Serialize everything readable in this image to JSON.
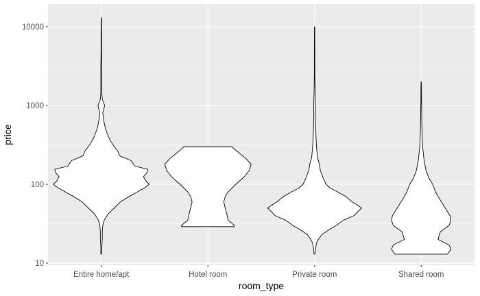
{
  "chart_data": {
    "type": "violin",
    "xlabel": "room_type",
    "ylabel": "price",
    "y_scale": "log10",
    "ylim": [
      10,
      13000
    ],
    "y_ticks": [
      10,
      100,
      1000,
      10000
    ],
    "y_tick_labels": [
      "10",
      "100",
      "1000",
      "10000"
    ],
    "categories": [
      "Entire home/apt",
      "Hotel room",
      "Private room",
      "Shared room"
    ],
    "grid": true,
    "background": "#ebebeb",
    "gridline_color": "#ffffff",
    "violin_fill": "#ffffff",
    "violin_stroke": "#000000",
    "violins": [
      {
        "category": "Entire home/apt",
        "min": 13,
        "max": 13000,
        "density": [
          [
            13,
            0.01
          ],
          [
            16,
            0.01
          ],
          [
            20,
            0.02
          ],
          [
            25,
            0.02
          ],
          [
            30,
            0.03
          ],
          [
            35,
            0.06
          ],
          [
            42,
            0.14
          ],
          [
            50,
            0.27
          ],
          [
            60,
            0.4
          ],
          [
            70,
            0.58
          ],
          [
            80,
            0.75
          ],
          [
            90,
            0.9
          ],
          [
            100,
            1.0
          ],
          [
            110,
            0.93
          ],
          [
            125,
            0.88
          ],
          [
            140,
            0.95
          ],
          [
            155,
            0.97
          ],
          [
            170,
            0.7
          ],
          [
            200,
            0.62
          ],
          [
            230,
            0.38
          ],
          [
            260,
            0.35
          ],
          [
            300,
            0.27
          ],
          [
            350,
            0.2
          ],
          [
            400,
            0.15
          ],
          [
            500,
            0.09
          ],
          [
            600,
            0.06
          ],
          [
            800,
            0.03
          ],
          [
            1000,
            0.07
          ],
          [
            1200,
            0.02
          ],
          [
            1500,
            0.01
          ],
          [
            2000,
            0.01
          ],
          [
            3000,
            0.01
          ],
          [
            5000,
            0.005
          ],
          [
            8000,
            0.005
          ],
          [
            13000,
            0.003
          ]
        ]
      },
      {
        "category": "Hotel room",
        "min": 29,
        "max": 300,
        "density": [
          [
            29,
            0.55
          ],
          [
            30,
            0.55
          ],
          [
            32,
            0.5
          ],
          [
            35,
            0.42
          ],
          [
            40,
            0.4
          ],
          [
            45,
            0.38
          ],
          [
            50,
            0.36
          ],
          [
            60,
            0.33
          ],
          [
            70,
            0.36
          ],
          [
            80,
            0.42
          ],
          [
            100,
            0.58
          ],
          [
            125,
            0.76
          ],
          [
            150,
            0.86
          ],
          [
            180,
            0.9
          ],
          [
            210,
            0.8
          ],
          [
            250,
            0.65
          ],
          [
            280,
            0.55
          ],
          [
            300,
            0.5
          ]
        ]
      },
      {
        "category": "Private room",
        "min": 13,
        "max": 10000,
        "density": [
          [
            13,
            0.01
          ],
          [
            15,
            0.02
          ],
          [
            18,
            0.04
          ],
          [
            20,
            0.08
          ],
          [
            23,
            0.15
          ],
          [
            27,
            0.32
          ],
          [
            30,
            0.45
          ],
          [
            35,
            0.6
          ],
          [
            40,
            0.82
          ],
          [
            45,
            0.9
          ],
          [
            50,
            0.98
          ],
          [
            55,
            0.88
          ],
          [
            60,
            0.78
          ],
          [
            70,
            0.65
          ],
          [
            80,
            0.48
          ],
          [
            90,
            0.32
          ],
          [
            100,
            0.24
          ],
          [
            120,
            0.18
          ],
          [
            150,
            0.12
          ],
          [
            180,
            0.1
          ],
          [
            220,
            0.06
          ],
          [
            300,
            0.04
          ],
          [
            400,
            0.03
          ],
          [
            600,
            0.02
          ],
          [
            800,
            0.015
          ],
          [
            1000,
            0.02
          ],
          [
            1500,
            0.01
          ],
          [
            2500,
            0.005
          ],
          [
            5000,
            0.005
          ],
          [
            10000,
            0.003
          ]
        ]
      },
      {
        "category": "Shared room",
        "min": 13,
        "max": 2000,
        "density": [
          [
            13,
            0.55
          ],
          [
            15,
            0.62
          ],
          [
            17,
            0.58
          ],
          [
            20,
            0.35
          ],
          [
            25,
            0.4
          ],
          [
            30,
            0.58
          ],
          [
            35,
            0.62
          ],
          [
            40,
            0.6
          ],
          [
            50,
            0.5
          ],
          [
            60,
            0.42
          ],
          [
            70,
            0.35
          ],
          [
            80,
            0.3
          ],
          [
            100,
            0.24
          ],
          [
            120,
            0.16
          ],
          [
            150,
            0.1
          ],
          [
            200,
            0.06
          ],
          [
            300,
            0.03
          ],
          [
            500,
            0.015
          ],
          [
            800,
            0.01
          ],
          [
            1000,
            0.008
          ],
          [
            1500,
            0.005
          ],
          [
            2000,
            0.003
          ]
        ]
      }
    ]
  }
}
